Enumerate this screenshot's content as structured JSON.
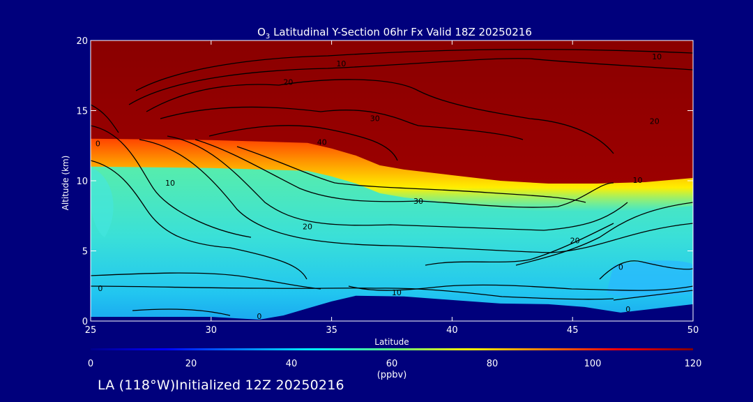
{
  "chart_data": {
    "type": "heatmap",
    "title": {
      "prefix": "O",
      "sub": "3",
      "rest": " Latitudinal Y-Section 06hr  Fx Valid 18Z 20250216"
    },
    "xlabel": "Latitude",
    "ylabel": "Altitude (km)",
    "xlim": [
      25,
      50
    ],
    "ylim": [
      0,
      20
    ],
    "x_ticks": [
      25,
      30,
      35,
      40,
      45,
      50
    ],
    "y_ticks": [
      0,
      5,
      10,
      15,
      20
    ],
    "colorbar": {
      "label": "(ppbv)",
      "min": 0,
      "max": 120,
      "ticks": [
        0,
        20,
        40,
        60,
        80,
        100,
        120
      ],
      "colors": [
        "#00008c",
        "#0000ff",
        "#0080ff",
        "#00ffff",
        "#60ff80",
        "#ffff00",
        "#ff8000",
        "#ff0000",
        "#800000"
      ]
    },
    "terrain_km": [
      [
        25,
        0.3
      ],
      [
        30,
        0.3
      ],
      [
        32,
        0.1
      ],
      [
        33,
        0.4
      ],
      [
        34,
        0.9
      ],
      [
        35,
        1.4
      ],
      [
        36,
        1.8
      ],
      [
        38,
        1.75
      ],
      [
        40,
        1.5
      ],
      [
        42,
        1.25
      ],
      [
        44,
        1.2
      ],
      [
        45.5,
        1.0
      ],
      [
        47,
        0.6
      ],
      [
        48.5,
        0.9
      ],
      [
        50,
        1.2
      ]
    ],
    "tropopause_km": [
      [
        25,
        13.0
      ],
      [
        30,
        12.9
      ],
      [
        34,
        12.7
      ],
      [
        35,
        12.3
      ],
      [
        36,
        11.8
      ],
      [
        37,
        11.1
      ],
      [
        38,
        10.8
      ],
      [
        40,
        10.4
      ],
      [
        42,
        10.0
      ],
      [
        44,
        9.8
      ],
      [
        46,
        9.8
      ],
      [
        48,
        9.9
      ],
      [
        50,
        10.2
      ]
    ],
    "contour_labels": [
      {
        "text": "10",
        "lat": 35.4,
        "alt": 18.3
      },
      {
        "text": "10",
        "lat": 48.5,
        "alt": 18.8
      },
      {
        "text": "20",
        "lat": 33.2,
        "alt": 17.0
      },
      {
        "text": "20",
        "lat": 48.4,
        "alt": 14.2
      },
      {
        "text": "30",
        "lat": 36.8,
        "alt": 14.4
      },
      {
        "text": "40",
        "lat": 34.6,
        "alt": 12.7
      },
      {
        "text": "0",
        "lat": 25.3,
        "alt": 12.6
      },
      {
        "text": "10",
        "lat": 28.3,
        "alt": 9.8
      },
      {
        "text": "30",
        "lat": 38.6,
        "alt": 8.5
      },
      {
        "text": "20",
        "lat": 34.0,
        "alt": 6.7
      },
      {
        "text": "20",
        "lat": 45.1,
        "alt": 5.7
      },
      {
        "text": "0",
        "lat": 25.4,
        "alt": 2.3
      },
      {
        "text": "0",
        "lat": 47.0,
        "alt": 3.8
      },
      {
        "text": "10",
        "lat": 37.7,
        "alt": 2.0
      },
      {
        "text": "0",
        "lat": 32.0,
        "alt": 0.3
      },
      {
        "text": "0",
        "lat": 47.3,
        "alt": 0.8
      },
      {
        "text": "10",
        "lat": 47.7,
        "alt": 10.0
      }
    ]
  },
  "caption": "LA (118°W)Initialized 12Z 20250216"
}
